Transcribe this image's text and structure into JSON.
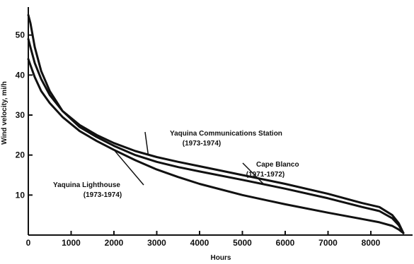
{
  "chart_data": {
    "type": "line",
    "xlabel": "Hours",
    "ylabel": "Wind velocity, mi/h",
    "xlim": [
      0,
      8760
    ],
    "ylim": [
      0,
      57
    ],
    "xticks": [
      0,
      1000,
      2000,
      3000,
      4000,
      5000,
      6000,
      7000,
      8000
    ],
    "yticks": [
      10,
      20,
      30,
      40,
      50
    ],
    "grid": false,
    "series": [
      {
        "name": "Yaquina Communications Station (1973-1974)",
        "x": [
          0,
          50,
          150,
          300,
          500,
          800,
          1200,
          1600,
          2000,
          2500,
          3000,
          3500,
          4000,
          5000,
          6000,
          7000,
          7800,
          8200,
          8500,
          8650,
          8760
        ],
        "y": [
          55,
          53,
          47,
          41,
          36,
          31,
          27.5,
          25,
          23,
          21,
          19.5,
          18.3,
          17.2,
          15,
          12.8,
          10.3,
          8,
          7,
          5,
          3,
          0.5
        ]
      },
      {
        "name": "Cape Blanco (1971-1972)",
        "x": [
          0,
          50,
          150,
          300,
          500,
          800,
          1200,
          1600,
          2000,
          2500,
          3000,
          3500,
          4000,
          5000,
          6000,
          7000,
          7800,
          8200,
          8500,
          8650,
          8760
        ],
        "y": [
          49,
          47,
          43,
          39,
          35,
          31,
          27,
          24.5,
          22.3,
          20,
          18.3,
          17,
          15.9,
          13.8,
          11.6,
          9.2,
          7,
          6,
          4.2,
          2.5,
          0.5
        ]
      },
      {
        "name": "Yaquina Lighthouse (1973-1974)",
        "x": [
          0,
          50,
          150,
          300,
          500,
          800,
          1200,
          1600,
          2000,
          2500,
          3000,
          3500,
          4000,
          5000,
          6000,
          7000,
          7800,
          8200,
          8500,
          8650,
          8760
        ],
        "y": [
          44,
          42.5,
          39.5,
          36,
          33,
          29.5,
          26,
          23.5,
          21.3,
          18.7,
          16.4,
          14.5,
          12.8,
          10,
          7.7,
          5.6,
          4,
          3.2,
          2.3,
          1.4,
          0.5
        ]
      }
    ],
    "annotations": [
      {
        "lines": [
          "Yaquina  Communications Station",
          "(1973-1974)"
        ],
        "series": 0,
        "x": 2800
      },
      {
        "lines": [
          "Cape Blanco",
          "(1971-1972)"
        ],
        "series": 1,
        "x": 5500
      },
      {
        "lines": [
          "Yaquina Lighthouse",
          "(1973-1974)"
        ],
        "series": 2,
        "x": 2000
      }
    ]
  }
}
